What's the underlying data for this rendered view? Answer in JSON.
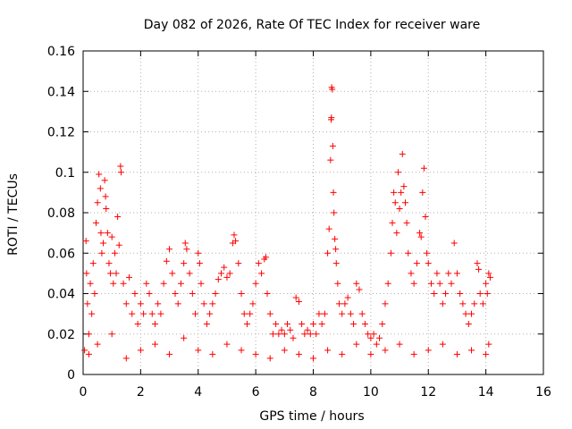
{
  "chart_data": {
    "type": "scatter",
    "title": "Day 082 of 2026, Rate Of TEC Index for receiver ware",
    "xlabel": "GPS time / hours",
    "ylabel": "ROTI / TECUs",
    "xlim": [
      0,
      16
    ],
    "ylim": [
      0,
      0.16
    ],
    "xticks": [
      0,
      2,
      4,
      6,
      8,
      10,
      12,
      14,
      16
    ],
    "xtick_labels": [
      "0",
      "2",
      "4",
      "6",
      "8",
      "10",
      "12",
      "14",
      "16"
    ],
    "yticks": [
      0,
      0.02,
      0.04,
      0.06,
      0.08,
      0.1,
      0.12,
      0.14,
      0.16
    ],
    "ytick_labels": [
      "0",
      "0.02",
      "0.04",
      "0.06",
      "0.08",
      "0.1",
      "0.12",
      "0.14",
      "0.16"
    ],
    "grid": true,
    "marker": "+",
    "color": "#ff0000",
    "series": [
      {
        "name": "ROTI",
        "points": [
          [
            0.05,
            0.012
          ],
          [
            0.1,
            0.066
          ],
          [
            0.12,
            0.05
          ],
          [
            0.15,
            0.035
          ],
          [
            0.2,
            0.02
          ],
          [
            0.25,
            0.045
          ],
          [
            0.3,
            0.03
          ],
          [
            0.35,
            0.055
          ],
          [
            0.4,
            0.04
          ],
          [
            0.45,
            0.075
          ],
          [
            0.5,
            0.085
          ],
          [
            0.55,
            0.099
          ],
          [
            0.6,
            0.092
          ],
          [
            0.62,
            0.07
          ],
          [
            0.65,
            0.06
          ],
          [
            0.7,
            0.065
          ],
          [
            0.75,
            0.096
          ],
          [
            0.78,
            0.088
          ],
          [
            0.8,
            0.082
          ],
          [
            0.85,
            0.07
          ],
          [
            0.9,
            0.055
          ],
          [
            0.95,
            0.05
          ],
          [
            1.0,
            0.068
          ],
          [
            1.05,
            0.045
          ],
          [
            1.1,
            0.06
          ],
          [
            1.15,
            0.05
          ],
          [
            1.2,
            0.078
          ],
          [
            1.25,
            0.064
          ],
          [
            1.3,
            0.103
          ],
          [
            1.32,
            0.1
          ],
          [
            1.4,
            0.045
          ],
          [
            1.5,
            0.035
          ],
          [
            1.6,
            0.048
          ],
          [
            1.7,
            0.03
          ],
          [
            1.8,
            0.04
          ],
          [
            1.9,
            0.025
          ],
          [
            2.0,
            0.035
          ],
          [
            2.1,
            0.03
          ],
          [
            2.2,
            0.045
          ],
          [
            2.3,
            0.04
          ],
          [
            2.4,
            0.03
          ],
          [
            2.5,
            0.025
          ],
          [
            2.6,
            0.035
          ],
          [
            2.7,
            0.03
          ],
          [
            2.8,
            0.045
          ],
          [
            2.9,
            0.056
          ],
          [
            3.0,
            0.062
          ],
          [
            3.1,
            0.05
          ],
          [
            3.2,
            0.04
          ],
          [
            3.3,
            0.035
          ],
          [
            3.4,
            0.045
          ],
          [
            3.5,
            0.055
          ],
          [
            3.55,
            0.065
          ],
          [
            3.6,
            0.062
          ],
          [
            3.7,
            0.05
          ],
          [
            3.8,
            0.04
          ],
          [
            3.9,
            0.03
          ],
          [
            4.0,
            0.06
          ],
          [
            4.05,
            0.055
          ],
          [
            4.1,
            0.045
          ],
          [
            4.2,
            0.035
          ],
          [
            4.3,
            0.025
          ],
          [
            4.4,
            0.03
          ],
          [
            4.5,
            0.035
          ],
          [
            4.6,
            0.04
          ],
          [
            4.7,
            0.047
          ],
          [
            4.8,
            0.05
          ],
          [
            4.9,
            0.053
          ],
          [
            5.0,
            0.048
          ],
          [
            5.1,
            0.05
          ],
          [
            5.2,
            0.065
          ],
          [
            5.25,
            0.069
          ],
          [
            5.3,
            0.066
          ],
          [
            5.4,
            0.055
          ],
          [
            5.5,
            0.04
          ],
          [
            5.6,
            0.03
          ],
          [
            5.7,
            0.025
          ],
          [
            5.8,
            0.03
          ],
          [
            5.9,
            0.035
          ],
          [
            6.0,
            0.045
          ],
          [
            6.1,
            0.055
          ],
          [
            6.2,
            0.05
          ],
          [
            6.3,
            0.057
          ],
          [
            6.35,
            0.058
          ],
          [
            6.4,
            0.04
          ],
          [
            6.5,
            0.03
          ],
          [
            6.6,
            0.02
          ],
          [
            6.7,
            0.025
          ],
          [
            6.8,
            0.02
          ],
          [
            6.9,
            0.022
          ],
          [
            7.0,
            0.02
          ],
          [
            7.1,
            0.025
          ],
          [
            7.2,
            0.022
          ],
          [
            7.3,
            0.018
          ],
          [
            7.4,
            0.038
          ],
          [
            7.5,
            0.036
          ],
          [
            7.6,
            0.025
          ],
          [
            7.7,
            0.02
          ],
          [
            7.8,
            0.022
          ],
          [
            7.9,
            0.02
          ],
          [
            8.0,
            0.025
          ],
          [
            8.1,
            0.02
          ],
          [
            8.2,
            0.03
          ],
          [
            8.3,
            0.025
          ],
          [
            8.4,
            0.03
          ],
          [
            8.5,
            0.06
          ],
          [
            8.55,
            0.072
          ],
          [
            8.6,
            0.106
          ],
          [
            8.62,
            0.126
          ],
          [
            8.63,
            0.127
          ],
          [
            8.64,
            0.142
          ],
          [
            8.66,
            0.141
          ],
          [
            8.68,
            0.113
          ],
          [
            8.7,
            0.09
          ],
          [
            8.72,
            0.08
          ],
          [
            8.75,
            0.067
          ],
          [
            8.78,
            0.062
          ],
          [
            8.8,
            0.055
          ],
          [
            8.85,
            0.045
          ],
          [
            8.9,
            0.035
          ],
          [
            9.0,
            0.03
          ],
          [
            9.1,
            0.035
          ],
          [
            9.2,
            0.038
          ],
          [
            9.3,
            0.03
          ],
          [
            9.4,
            0.025
          ],
          [
            9.5,
            0.045
          ],
          [
            9.6,
            0.042
          ],
          [
            9.7,
            0.03
          ],
          [
            9.8,
            0.025
          ],
          [
            9.9,
            0.02
          ],
          [
            10.0,
            0.018
          ],
          [
            10.1,
            0.02
          ],
          [
            10.2,
            0.015
          ],
          [
            10.3,
            0.018
          ],
          [
            10.4,
            0.025
          ],
          [
            10.5,
            0.035
          ],
          [
            10.6,
            0.045
          ],
          [
            10.7,
            0.06
          ],
          [
            10.75,
            0.075
          ],
          [
            10.8,
            0.09
          ],
          [
            10.85,
            0.085
          ],
          [
            10.9,
            0.07
          ],
          [
            10.95,
            0.1
          ],
          [
            11.0,
            0.082
          ],
          [
            11.05,
            0.09
          ],
          [
            11.1,
            0.109
          ],
          [
            11.15,
            0.093
          ],
          [
            11.2,
            0.085
          ],
          [
            11.25,
            0.075
          ],
          [
            11.3,
            0.06
          ],
          [
            11.4,
            0.05
          ],
          [
            11.5,
            0.045
          ],
          [
            11.6,
            0.055
          ],
          [
            11.7,
            0.07
          ],
          [
            11.75,
            0.068
          ],
          [
            11.8,
            0.09
          ],
          [
            11.85,
            0.102
          ],
          [
            11.9,
            0.078
          ],
          [
            11.95,
            0.06
          ],
          [
            12.0,
            0.055
          ],
          [
            12.1,
            0.045
          ],
          [
            12.2,
            0.04
          ],
          [
            12.3,
            0.05
          ],
          [
            12.4,
            0.045
          ],
          [
            12.5,
            0.035
          ],
          [
            12.6,
            0.04
          ],
          [
            12.7,
            0.05
          ],
          [
            12.8,
            0.045
          ],
          [
            12.9,
            0.065
          ],
          [
            13.0,
            0.05
          ],
          [
            13.1,
            0.04
          ],
          [
            13.2,
            0.035
          ],
          [
            13.3,
            0.03
          ],
          [
            13.4,
            0.025
          ],
          [
            13.5,
            0.03
          ],
          [
            13.6,
            0.035
          ],
          [
            13.7,
            0.055
          ],
          [
            13.75,
            0.052
          ],
          [
            13.8,
            0.04
          ],
          [
            13.9,
            0.035
          ],
          [
            14.0,
            0.045
          ],
          [
            14.05,
            0.04
          ],
          [
            14.1,
            0.05
          ],
          [
            14.15,
            0.048
          ],
          [
            0.2,
            0.01
          ],
          [
            0.5,
            0.015
          ],
          [
            1.0,
            0.02
          ],
          [
            1.5,
            0.008
          ],
          [
            2.0,
            0.012
          ],
          [
            2.5,
            0.015
          ],
          [
            3.0,
            0.01
          ],
          [
            3.5,
            0.018
          ],
          [
            4.0,
            0.012
          ],
          [
            4.5,
            0.01
          ],
          [
            5.0,
            0.015
          ],
          [
            5.5,
            0.012
          ],
          [
            6.0,
            0.01
          ],
          [
            6.5,
            0.008
          ],
          [
            7.0,
            0.012
          ],
          [
            7.5,
            0.01
          ],
          [
            8.0,
            0.008
          ],
          [
            8.5,
            0.012
          ],
          [
            9.0,
            0.01
          ],
          [
            9.5,
            0.015
          ],
          [
            10.0,
            0.01
          ],
          [
            10.5,
            0.012
          ],
          [
            11.0,
            0.015
          ],
          [
            11.5,
            0.01
          ],
          [
            12.0,
            0.012
          ],
          [
            12.5,
            0.015
          ],
          [
            13.0,
            0.01
          ],
          [
            13.5,
            0.012
          ],
          [
            14.0,
            0.01
          ],
          [
            14.1,
            0.015
          ]
        ]
      }
    ]
  }
}
